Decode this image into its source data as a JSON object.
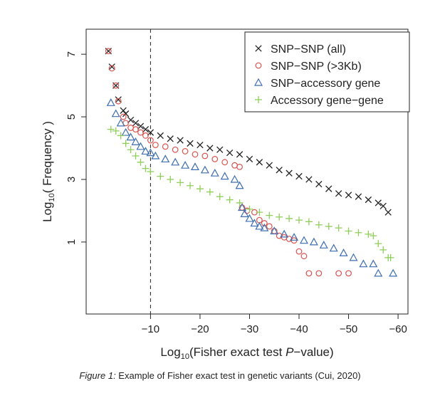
{
  "caption": {
    "label": "Figure 1:",
    "text": " Example of Fisher exact test in genetic variants (Cui, 2020)"
  },
  "chart_data": {
    "type": "scatter",
    "title": "",
    "xlabel": {
      "pre": "Log",
      "sub": "10",
      "mid": "(Fisher exact test ",
      "italic": "P",
      "post": "−value)"
    },
    "ylabel": {
      "pre": "Log",
      "sub": "10",
      "post": "( Frequency )"
    },
    "xlim": [
      3,
      -62
    ],
    "ylim": [
      -1.3,
      7.8
    ],
    "x_ticks": [
      {
        "value": -10,
        "label": "−10"
      },
      {
        "value": -20,
        "label": "−20"
      },
      {
        "value": -30,
        "label": "−30"
      },
      {
        "value": -40,
        "label": "−40"
      },
      {
        "value": -50,
        "label": "−50"
      },
      {
        "value": -60,
        "label": "−60"
      }
    ],
    "y_ticks": [
      {
        "value": 1,
        "label": "1"
      },
      {
        "value": 3,
        "label": "3"
      },
      {
        "value": 5,
        "label": "5"
      },
      {
        "value": 7,
        "label": "7"
      }
    ],
    "vline": {
      "x": -10,
      "style": "dashed"
    },
    "grid": false,
    "legend_position": "top-right",
    "series": [
      {
        "name": "SNP−SNP (all)",
        "marker": "x",
        "color": "#222222",
        "points": [
          [
            -1.5,
            7.1
          ],
          [
            -2.2,
            6.6
          ],
          [
            -3,
            6
          ],
          [
            -3.5,
            5.55
          ],
          [
            -4.5,
            5.2
          ],
          [
            -5,
            5.1
          ],
          [
            -6,
            4.9
          ],
          [
            -7,
            4.8
          ],
          [
            -8,
            4.7
          ],
          [
            -9,
            4.6
          ],
          [
            -10,
            4.5
          ],
          [
            -12,
            4.4
          ],
          [
            -14,
            4.3
          ],
          [
            -16,
            4.25
          ],
          [
            -18,
            4.15
          ],
          [
            -20,
            4.1
          ],
          [
            -22,
            4.0
          ],
          [
            -24,
            3.95
          ],
          [
            -26,
            3.85
          ],
          [
            -28,
            3.8
          ],
          [
            -30,
            3.65
          ],
          [
            -32,
            3.55
          ],
          [
            -34,
            3.45
          ],
          [
            -36,
            3.3
          ],
          [
            -38,
            3.2
          ],
          [
            -40,
            3.1
          ],
          [
            -42,
            3.0
          ],
          [
            -44,
            2.85
          ],
          [
            -46,
            2.7
          ],
          [
            -48,
            2.55
          ],
          [
            -50,
            2.5
          ],
          [
            -52,
            2.45
          ],
          [
            -54,
            2.35
          ],
          [
            -56,
            2.25
          ],
          [
            -57,
            2.15
          ],
          [
            -58,
            1.95
          ]
        ]
      },
      {
        "name": "SNP−SNP (>3Kb)",
        "marker": "circle",
        "color": "#d9534f",
        "points": [
          [
            -1.5,
            7.1
          ],
          [
            -2.2,
            6.55
          ],
          [
            -3,
            6.0
          ],
          [
            -3.5,
            5.5
          ],
          [
            -4.5,
            5.0
          ],
          [
            -5,
            4.8
          ],
          [
            -6,
            4.65
          ],
          [
            -7,
            4.6
          ],
          [
            -8,
            4.5
          ],
          [
            -9,
            4.4
          ],
          [
            -10,
            4.25
          ],
          [
            -11,
            4.1
          ],
          [
            -13,
            4.05
          ],
          [
            -15,
            3.95
          ],
          [
            -17,
            3.9
          ],
          [
            -19,
            3.8
          ],
          [
            -21,
            3.75
          ],
          [
            -23,
            3.65
          ],
          [
            -25,
            3.55
          ],
          [
            -27,
            3.45
          ],
          [
            -28,
            3.4
          ],
          [
            -28.5,
            2.1
          ],
          [
            -29.5,
            2.0
          ],
          [
            -31,
            1.95
          ],
          [
            -32,
            1.7
          ],
          [
            -33,
            1.6
          ],
          [
            -34,
            1.5
          ],
          [
            -35,
            1.35
          ],
          [
            -36,
            1.2
          ],
          [
            -37,
            1.15
          ],
          [
            -38,
            1.1
          ],
          [
            -39,
            1.05
          ],
          [
            -40,
            0.7
          ],
          [
            -41,
            0.55
          ],
          [
            -42,
            0.0
          ],
          [
            -44,
            0.0
          ],
          [
            -48,
            0.0
          ],
          [
            -50,
            0.0
          ]
        ]
      },
      {
        "name": "SNP−accessory gene",
        "marker": "triangle",
        "color": "#3f6fb0",
        "points": [
          [
            -2,
            5.45
          ],
          [
            -3,
            5.1
          ],
          [
            -4,
            4.8
          ],
          [
            -5,
            4.5
          ],
          [
            -6,
            4.35
          ],
          [
            -7,
            4.2
          ],
          [
            -8,
            4.05
          ],
          [
            -9,
            3.9
          ],
          [
            -10,
            3.85
          ],
          [
            -11,
            3.75
          ],
          [
            -13,
            3.65
          ],
          [
            -15,
            3.55
          ],
          [
            -17,
            3.45
          ],
          [
            -19,
            3.4
          ],
          [
            -21,
            3.3
          ],
          [
            -23,
            3.2
          ],
          [
            -25,
            3.1
          ],
          [
            -27,
            3.0
          ],
          [
            -28,
            2.8
          ],
          [
            -28.5,
            2.1
          ],
          [
            -29,
            1.9
          ],
          [
            -30,
            1.75
          ],
          [
            -31,
            1.6
          ],
          [
            -32,
            1.5
          ],
          [
            -33,
            1.45
          ],
          [
            -35,
            1.35
          ],
          [
            -37,
            1.25
          ],
          [
            -39,
            1.15
          ],
          [
            -41,
            1.05
          ],
          [
            -43,
            1.0
          ],
          [
            -45,
            0.9
          ],
          [
            -47,
            0.8
          ],
          [
            -49,
            0.65
          ],
          [
            -51,
            0.5
          ],
          [
            -53,
            0.3
          ],
          [
            -55,
            0.3
          ],
          [
            -56,
            0.0
          ],
          [
            -59,
            0.0
          ]
        ]
      },
      {
        "name": "Accessory gene−gene",
        "marker": "plus",
        "color": "#8fce5a",
        "points": [
          [
            -2,
            4.6
          ],
          [
            -3,
            4.55
          ],
          [
            -4,
            4.4
          ],
          [
            -5,
            4.15
          ],
          [
            -6,
            3.95
          ],
          [
            -7,
            3.75
          ],
          [
            -8,
            3.55
          ],
          [
            -9,
            3.35
          ],
          [
            -10,
            3.25
          ],
          [
            -12,
            3.1
          ],
          [
            -14,
            3.0
          ],
          [
            -16,
            2.9
          ],
          [
            -18,
            2.8
          ],
          [
            -20,
            2.7
          ],
          [
            -22,
            2.6
          ],
          [
            -24,
            2.45
          ],
          [
            -26,
            2.35
          ],
          [
            -28,
            2.25
          ],
          [
            -30,
            2.05
          ],
          [
            -32,
            1.95
          ],
          [
            -34,
            1.85
          ],
          [
            -36,
            1.8
          ],
          [
            -38,
            1.75
          ],
          [
            -40,
            1.7
          ],
          [
            -42,
            1.65
          ],
          [
            -44,
            1.55
          ],
          [
            -46,
            1.5
          ],
          [
            -48,
            1.45
          ],
          [
            -50,
            1.35
          ],
          [
            -52,
            1.3
          ],
          [
            -54,
            1.25
          ],
          [
            -55,
            1.2
          ],
          [
            -56,
            0.95
          ],
          [
            -57,
            0.75
          ],
          [
            -58,
            0.5
          ],
          [
            -58.5,
            0.5
          ]
        ]
      }
    ]
  }
}
